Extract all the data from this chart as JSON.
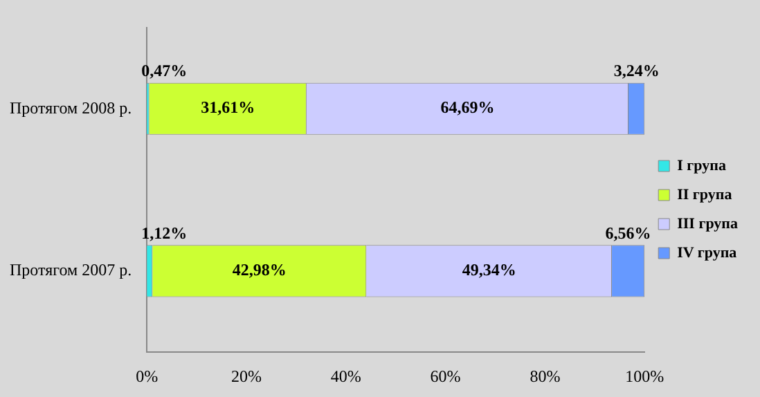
{
  "chart_data": {
    "type": "bar",
    "orientation": "horizontal",
    "stacked": true,
    "categories": [
      "Протягом 2008 р.",
      "Протягом 2007 р."
    ],
    "series": [
      {
        "name": "I група",
        "color": "#33e6e6",
        "values": [
          0.47,
          1.12
        ],
        "value_labels": [
          "0,47%",
          "1,12%"
        ]
      },
      {
        "name": "II група",
        "color": "#ccff33",
        "values": [
          31.61,
          42.98
        ],
        "value_labels": [
          "31,61%",
          "42,98%"
        ]
      },
      {
        "name": "III група",
        "color": "#ccccff",
        "values": [
          64.69,
          49.34
        ],
        "value_labels": [
          "64,69%",
          "49,34%"
        ]
      },
      {
        "name": "IV група",
        "color": "#6699ff",
        "values": [
          3.24,
          6.56
        ],
        "value_labels": [
          "3,24%",
          "6,56%"
        ]
      }
    ],
    "xlim": [
      0,
      100
    ],
    "xticks": [
      {
        "value": 0,
        "label": "0%"
      },
      {
        "value": 20,
        "label": "20%"
      },
      {
        "value": 40,
        "label": "40%"
      },
      {
        "value": 60,
        "label": "60%"
      },
      {
        "value": 80,
        "label": "80%"
      },
      {
        "value": 100,
        "label": "100%"
      }
    ],
    "grid": false,
    "legend": "right"
  }
}
